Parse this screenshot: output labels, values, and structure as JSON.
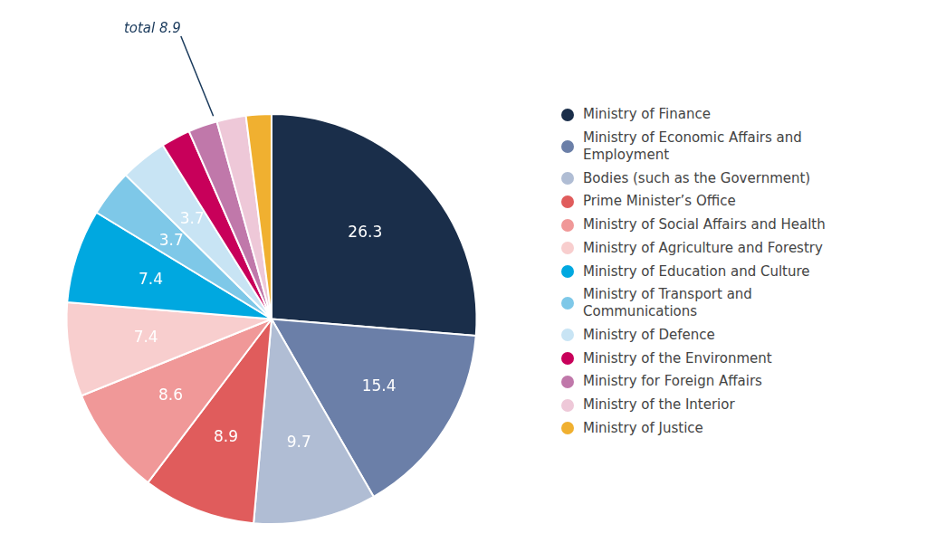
{
  "chart_data": {
    "type": "pie",
    "categories": [
      "Ministry of Finance",
      "Ministry of Economic Affairs and\nEmployment",
      "Bodies (such as the Government)",
      "Prime Minister’s Office",
      "Ministry of Social Affairs and Health",
      "Ministry of Agriculture and Forestry",
      "Ministry of Education and Culture",
      "Ministry of Transport and\nCommunications",
      "Ministry of Defence",
      "Ministry of the Environment",
      "Ministry for Foreign Affairs",
      "Ministry of the Interior",
      "Ministry of Justice"
    ],
    "values": [
      26.3,
      15.4,
      9.7,
      8.9,
      8.6,
      7.4,
      7.4,
      3.7,
      3.7,
      2.3,
      2.3,
      2.3,
      2.0
    ],
    "colors": [
      "#1a2e4a",
      "#6b7fa8",
      "#b0bdd4",
      "#e05c5c",
      "#f09898",
      "#f8cece",
      "#00a8e0",
      "#7ec8e8",
      "#c8e4f4",
      "#c8005a",
      "#c078aa",
      "#eec8d8",
      "#f0b030"
    ],
    "data_labels": true,
    "value_labels": [
      "26.3",
      "15.4",
      "9.7",
      "8.9",
      "8.6",
      "7.4",
      "7.4",
      "3.7",
      "3.7",
      null,
      null,
      null,
      null
    ],
    "annotation": {
      "text": "total 8.9",
      "color": "#1a3a5c",
      "categories": [
        "Ministry of the Environment",
        "Ministry for Foreign Affairs",
        "Ministry of the Interior",
        "Ministry of Justice"
      ]
    },
    "legend": "right"
  }
}
